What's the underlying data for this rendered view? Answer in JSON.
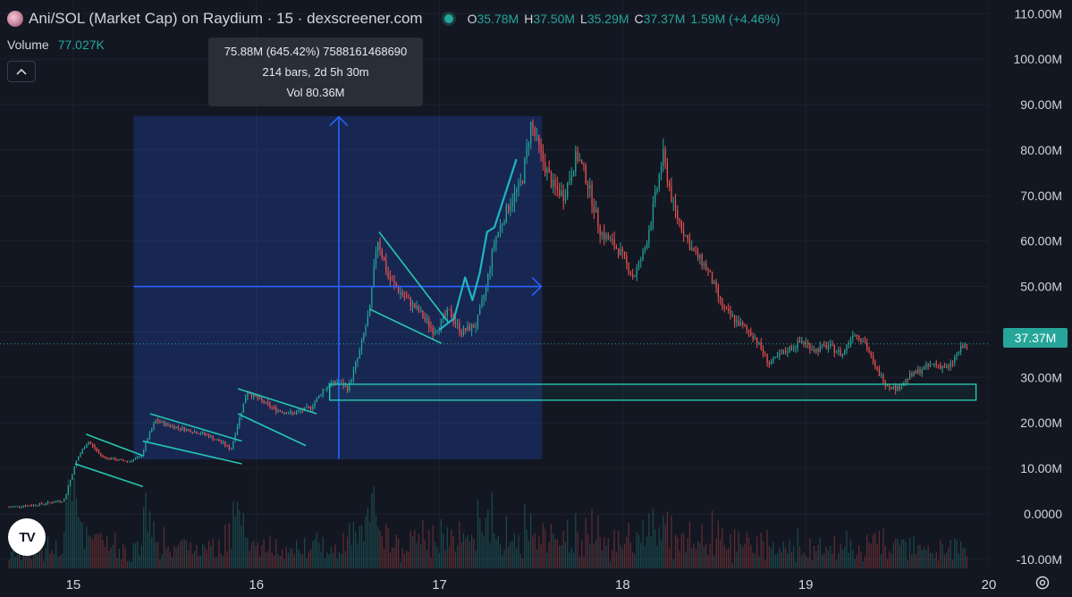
{
  "header": {
    "title": "Ani/SOL (Market Cap) on Raydium · 15 · dexscreener.com",
    "ohlc": [
      {
        "key": "O",
        "value": "35.78M"
      },
      {
        "key": "H",
        "value": "37.50M"
      },
      {
        "key": "L",
        "value": "35.29M"
      },
      {
        "key": "C",
        "value": "37.37M"
      }
    ],
    "change": "1.59M (+4.46%)"
  },
  "volume": {
    "label": "Volume",
    "value": "77.027K"
  },
  "measure_tooltip": {
    "line1": "75.88M (645.42%) 7588161468690",
    "line2": "214 bars, 2d 5h 30m",
    "line3": "Vol 80.36M"
  },
  "last_price_label": "37.37M",
  "colors": {
    "background": "#131722",
    "up": "#26a69a",
    "down": "#ef5350",
    "measure": "#2962ff",
    "drawing": "#26c6b0"
  },
  "chart_data": {
    "type": "candlestick",
    "x_ticks": [
      "15",
      "16",
      "17",
      "18",
      "19",
      "20"
    ],
    "y_ticks": [
      "110.00M",
      "100.00M",
      "90.00M",
      "80.00M",
      "70.00M",
      "60.00M",
      "50.00M",
      "40.00M",
      "30.00M",
      "20.00M",
      "10.00M",
      "0.0000",
      "-10.00M"
    ],
    "y_tick_values": [
      110,
      100,
      90,
      80,
      70,
      60,
      50,
      40,
      30,
      20,
      10,
      0,
      -10
    ],
    "y_unit": "M",
    "x_range": [
      14.6,
      20.0
    ],
    "y_range": [
      -12,
      113
    ],
    "last_price": 37.37,
    "price_path": [
      [
        14.65,
        1.5
      ],
      [
        14.8,
        2.0
      ],
      [
        14.95,
        3.0
      ],
      [
        14.98,
        7.0
      ],
      [
        15.02,
        12.0
      ],
      [
        15.08,
        16.0
      ],
      [
        15.16,
        12.5
      ],
      [
        15.22,
        12.0
      ],
      [
        15.3,
        11.5
      ],
      [
        15.37,
        12.5
      ],
      [
        15.4,
        16.0
      ],
      [
        15.45,
        20.5
      ],
      [
        15.52,
        19.5
      ],
      [
        15.62,
        18.5
      ],
      [
        15.72,
        17.5
      ],
      [
        15.82,
        15.5
      ],
      [
        15.86,
        14.0
      ],
      [
        15.9,
        20.0
      ],
      [
        15.95,
        27.0
      ],
      [
        16.0,
        25.5
      ],
      [
        16.1,
        23.0
      ],
      [
        16.2,
        22.0
      ],
      [
        16.3,
        23.5
      ],
      [
        16.36,
        27.0
      ],
      [
        16.4,
        28.5
      ],
      [
        16.45,
        29.0
      ],
      [
        16.5,
        27.5
      ],
      [
        16.56,
        35.0
      ],
      [
        16.62,
        45.0
      ],
      [
        16.66,
        61.0
      ],
      [
        16.72,
        52.0
      ],
      [
        16.8,
        48.0
      ],
      [
        16.9,
        44.0
      ],
      [
        16.97,
        40.0
      ],
      [
        17.05,
        44.5
      ],
      [
        17.12,
        40.0
      ],
      [
        17.2,
        41.5
      ],
      [
        17.25,
        49.0
      ],
      [
        17.3,
        60.0
      ],
      [
        17.38,
        68.0
      ],
      [
        17.45,
        73.0
      ],
      [
        17.5,
        86.0
      ],
      [
        17.56,
        78.0
      ],
      [
        17.62,
        72.0
      ],
      [
        17.68,
        70.0
      ],
      [
        17.75,
        79.0
      ],
      [
        17.8,
        74.0
      ],
      [
        17.88,
        62.0
      ],
      [
        17.98,
        58.0
      ],
      [
        18.06,
        52.0
      ],
      [
        18.12,
        58.0
      ],
      [
        18.18,
        70.0
      ],
      [
        18.22,
        79.0
      ],
      [
        18.28,
        67.0
      ],
      [
        18.38,
        58.0
      ],
      [
        18.46,
        54.0
      ],
      [
        18.55,
        45.0
      ],
      [
        18.63,
        42.0
      ],
      [
        18.72,
        39.0
      ],
      [
        18.8,
        33.0
      ],
      [
        18.9,
        36.0
      ],
      [
        18.98,
        38.0
      ],
      [
        19.05,
        36.0
      ],
      [
        19.12,
        37.0
      ],
      [
        19.2,
        35.0
      ],
      [
        19.26,
        40.0
      ],
      [
        19.32,
        38.0
      ],
      [
        19.38,
        32.0
      ],
      [
        19.44,
        28.5
      ],
      [
        19.5,
        27.5
      ],
      [
        19.56,
        30.0
      ],
      [
        19.62,
        31.5
      ],
      [
        19.7,
        33.0
      ],
      [
        19.78,
        32.0
      ],
      [
        19.84,
        36.0
      ],
      [
        19.88,
        37.37
      ]
    ]
  }
}
